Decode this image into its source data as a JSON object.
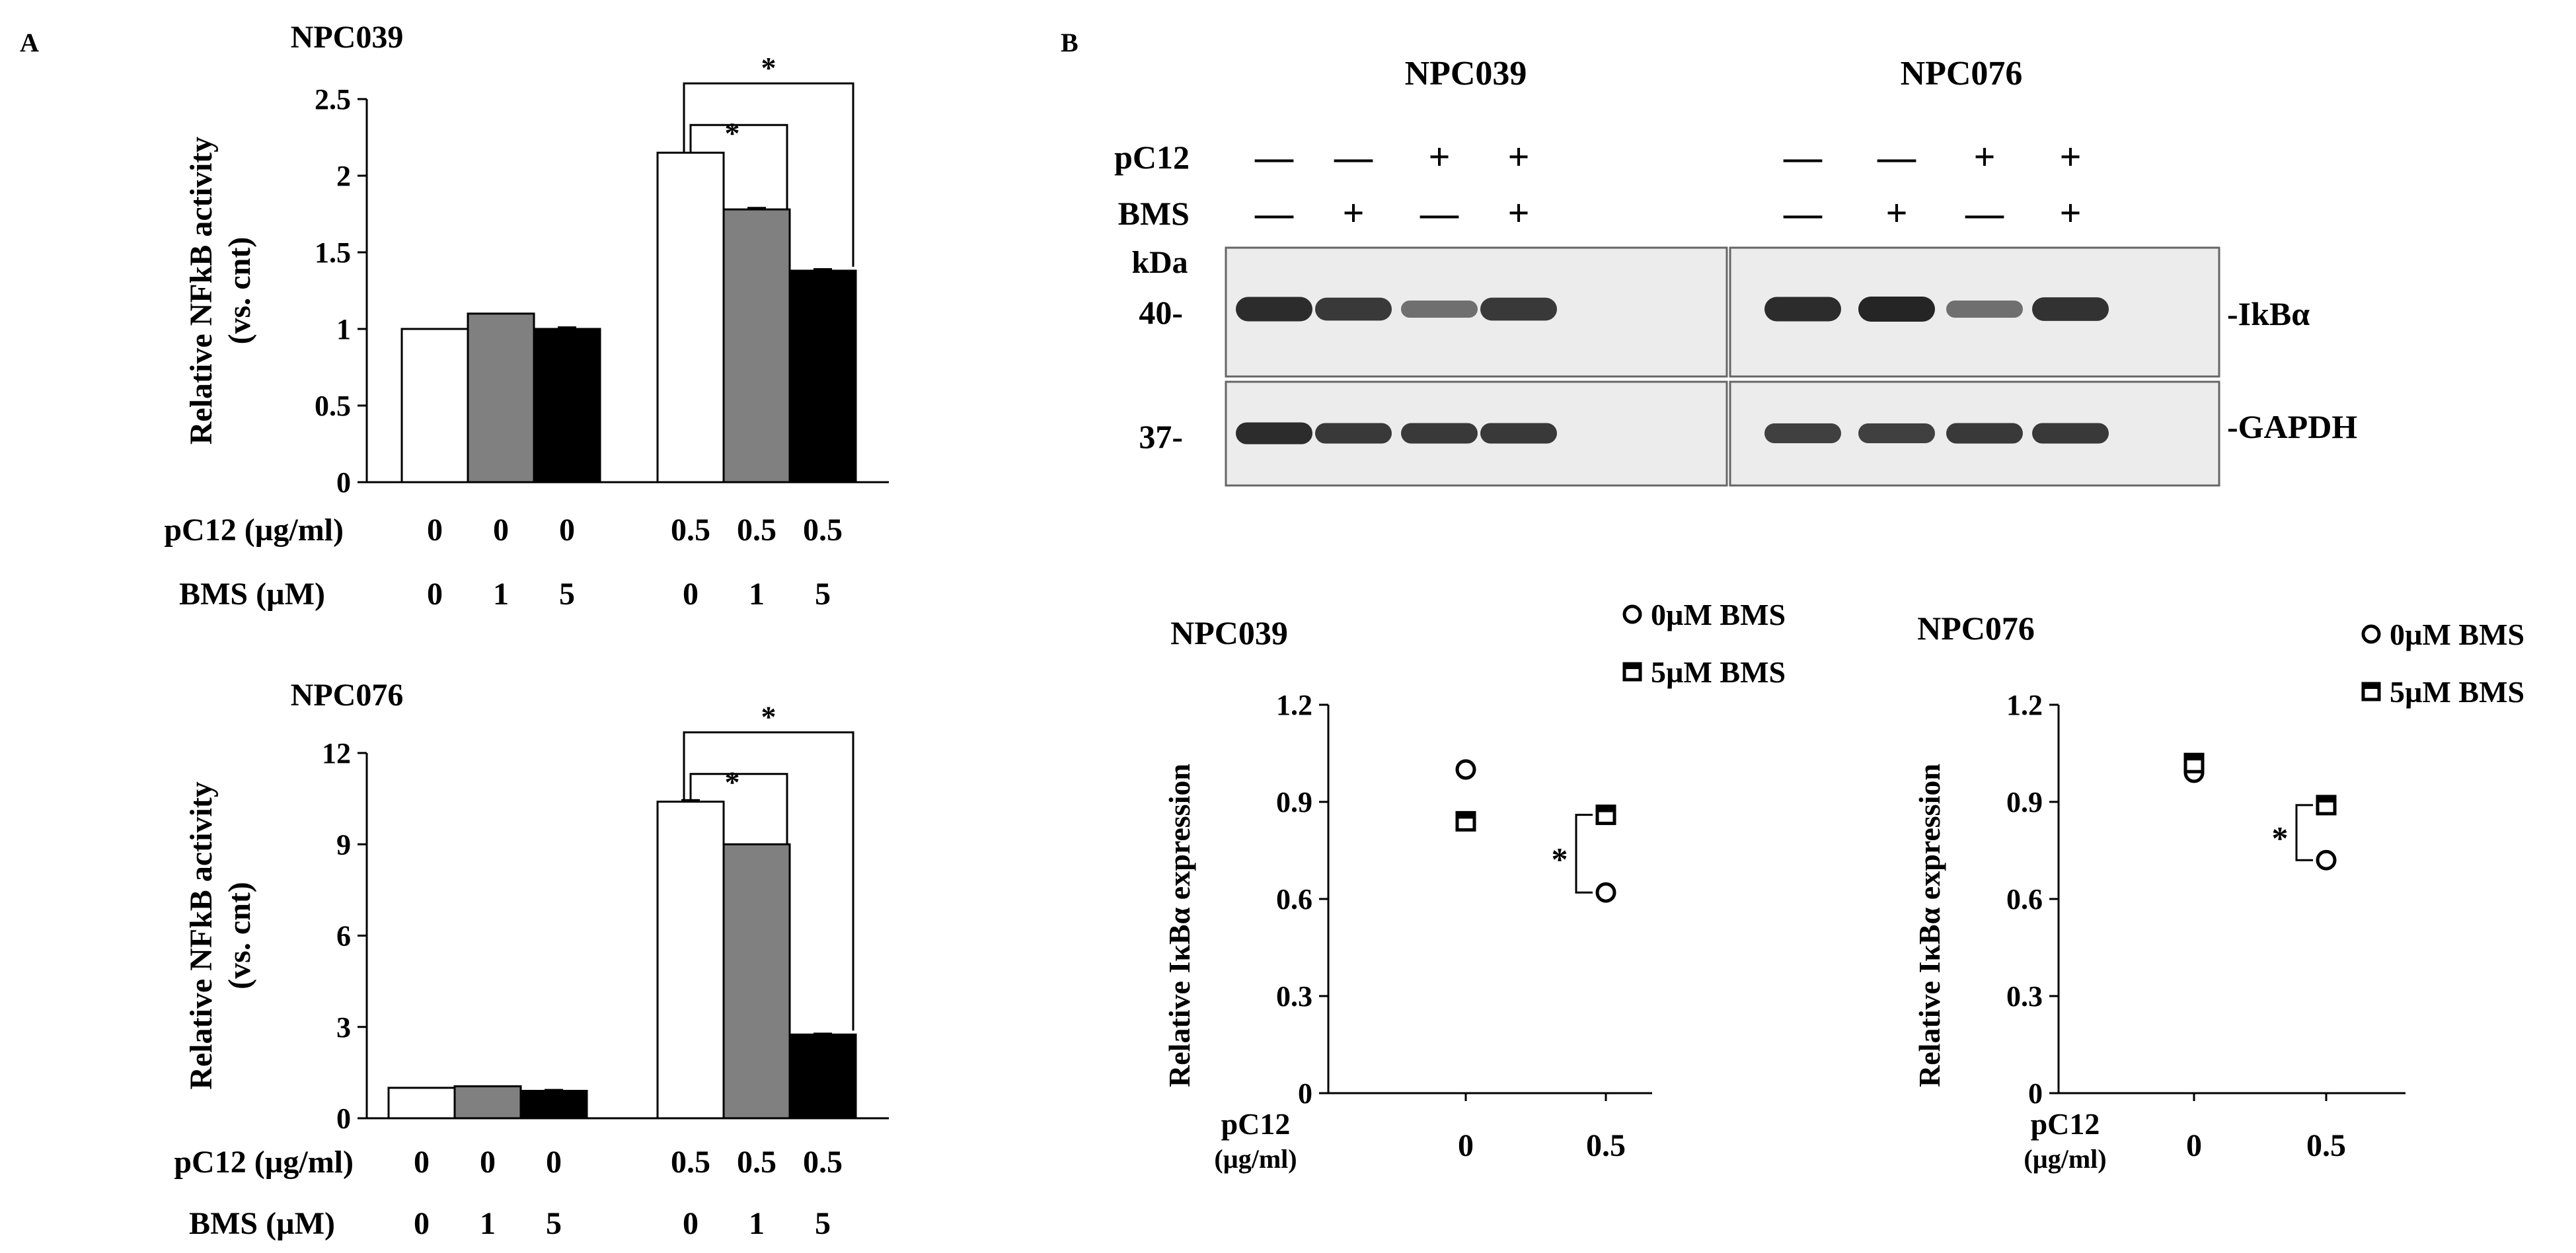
{
  "panels": {
    "A": "A",
    "B": "B"
  },
  "colors": {
    "bar_white": "#ffffff",
    "bar_gray": "#808080",
    "bar_black": "#000000",
    "blot_bg": "#ececec",
    "band": "#1a1a1a"
  },
  "chart_data": [
    {
      "type": "bar",
      "title": "NPC039",
      "ylabel": "Relative NFkB activity",
      "ylabel2": "(vs. cnt)",
      "ylim": [
        0,
        2.5
      ],
      "yticks": [
        "0",
        "0.5",
        "1",
        "1.5",
        "2",
        "2.5"
      ],
      "row_labels": [
        "pC12 (µg/ml)",
        "BMS (µM)"
      ],
      "pC12": [
        "0",
        "0",
        "0",
        "0.5",
        "0.5",
        "0.5"
      ],
      "BMS": [
        "0",
        "1",
        "5",
        "0",
        "1",
        "5"
      ],
      "values": [
        1.0,
        1.1,
        1.0,
        2.15,
        1.78,
        1.38
      ],
      "errors": [
        0,
        0,
        0.01,
        0,
        0.01,
        0.01
      ],
      "significance": [
        "*",
        "*"
      ]
    },
    {
      "type": "bar",
      "title": "NPC076",
      "ylabel": "Relative NFkB activity",
      "ylabel2": "(vs. cnt)",
      "ylim": [
        0,
        12
      ],
      "yticks": [
        "0",
        "3",
        "6",
        "9",
        "12"
      ],
      "row_labels": [
        "pC12 (µg/ml)",
        "BMS (µM)"
      ],
      "pC12": [
        "0",
        "0",
        "0",
        "0.5",
        "0.5",
        "0.5"
      ],
      "BMS": [
        "0",
        "1",
        "5",
        "0",
        "1",
        "5"
      ],
      "values": [
        1.0,
        1.05,
        0.9,
        10.4,
        9.0,
        2.75
      ],
      "errors": [
        0,
        0,
        0.03,
        0.05,
        0,
        0.03
      ],
      "significance": [
        "*",
        "*"
      ]
    },
    {
      "type": "scatter",
      "title": "NPC039",
      "ylabel": "Relative IκBα expression",
      "ylim": [
        0,
        1.2
      ],
      "yticks": [
        "0",
        "0.3",
        "0.6",
        "0.9",
        "1.2"
      ],
      "xlabel": "pC12",
      "xlabel2": "(µg/ml)",
      "categories": [
        "0",
        "0.5"
      ],
      "series": [
        {
          "name": "0µM BMS",
          "values": [
            1.0,
            0.62
          ]
        },
        {
          "name": "5µM BMS",
          "values": [
            0.84,
            0.86
          ]
        }
      ],
      "significance": "*"
    },
    {
      "type": "scatter",
      "title": "NPC076",
      "ylabel": "Relative IκBα expression",
      "ylim": [
        0,
        1.2
      ],
      "yticks": [
        "0",
        "0.3",
        "0.6",
        "0.9",
        "1.2"
      ],
      "xlabel": "pC12",
      "xlabel2": "(µg/ml)",
      "categories": [
        "0",
        "0.5"
      ],
      "series": [
        {
          "name": "0µM BMS",
          "values": [
            0.99,
            0.72
          ]
        },
        {
          "name": "5µM BMS",
          "values": [
            1.02,
            0.89
          ]
        }
      ],
      "significance": "*"
    }
  ],
  "blot": {
    "lines": [
      "NPC039",
      "NPC076"
    ],
    "row_labels": [
      "pC12",
      "BMS"
    ],
    "pC12": [
      "—",
      "—",
      "+",
      "+",
      "—",
      "—",
      "+",
      "+"
    ],
    "BMS": [
      "—",
      "+",
      "—",
      "+",
      "—",
      "+",
      "—",
      "+"
    ],
    "kda_label": "kDa",
    "markers": [
      "40-",
      "37-"
    ],
    "proteins": [
      "-IkBα",
      "-GAPDH"
    ],
    "ikba_intensity": [
      0.95,
      0.85,
      0.45,
      0.85,
      0.95,
      1.0,
      0.45,
      0.9
    ],
    "gapdh_intensity": [
      0.95,
      0.85,
      0.85,
      0.85,
      0.8,
      0.8,
      0.85,
      0.85
    ]
  }
}
